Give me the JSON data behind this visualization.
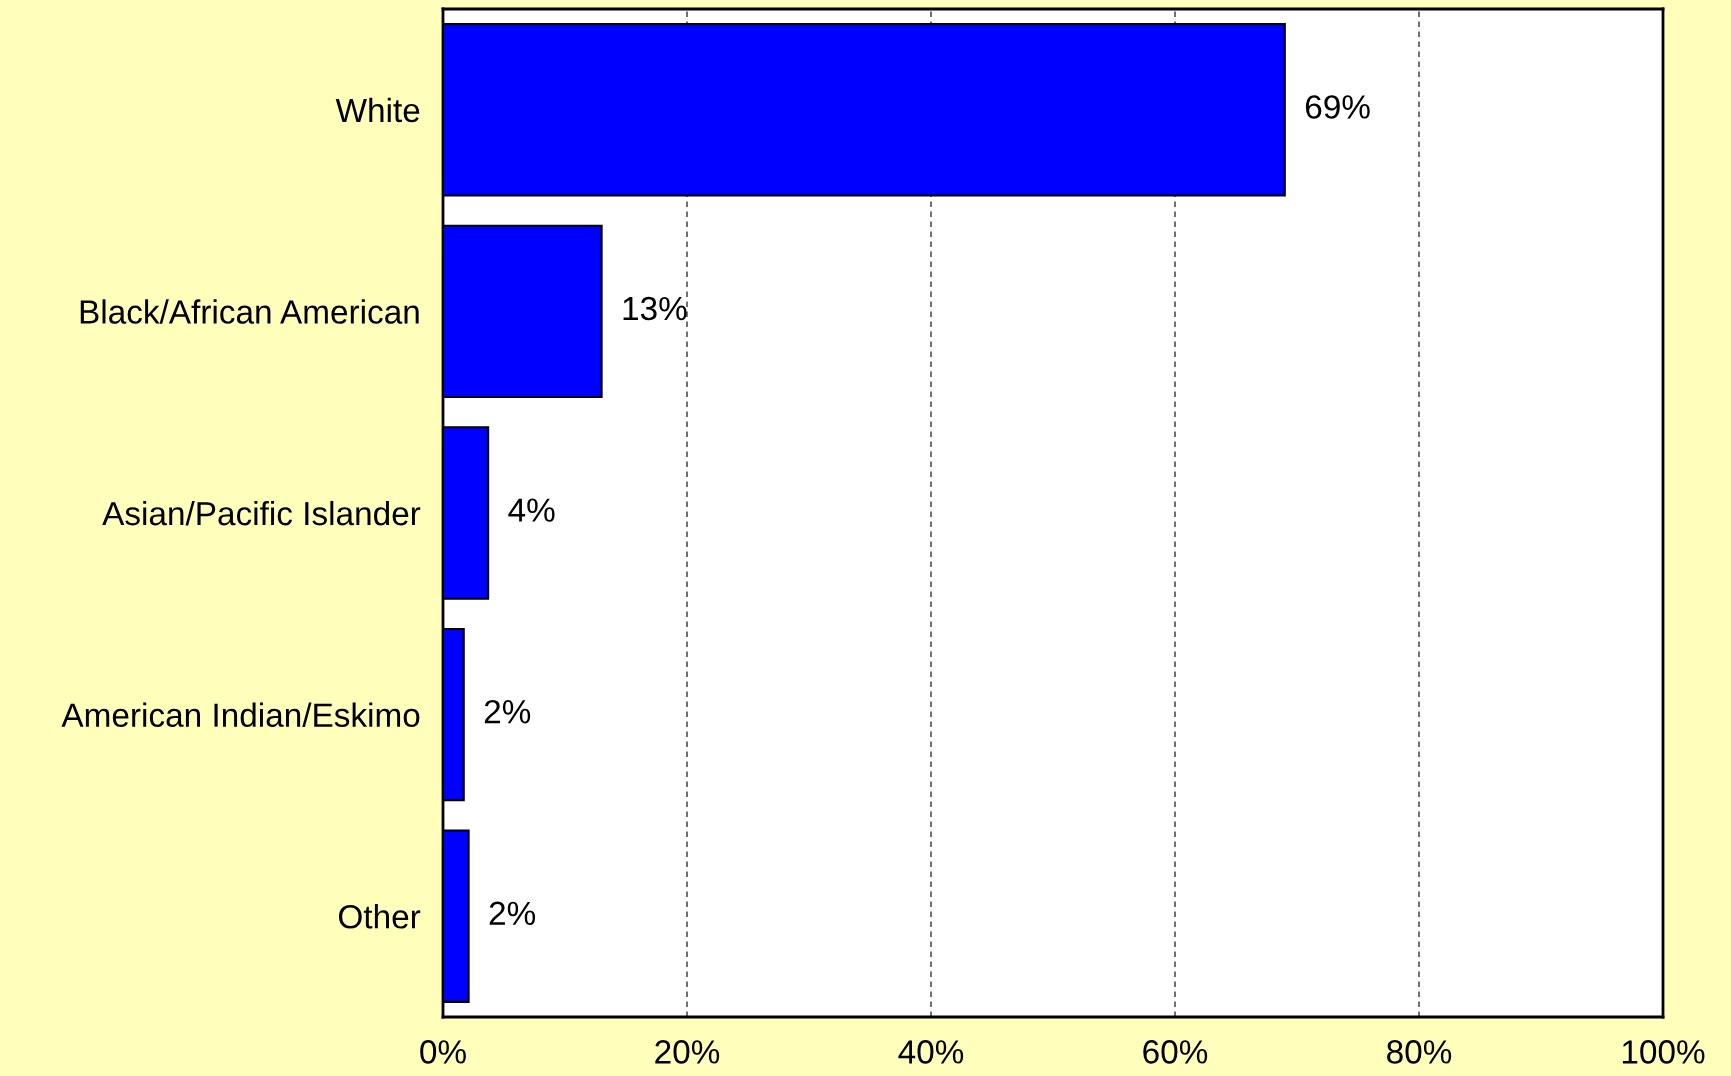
{
  "chart_data": {
    "type": "bar",
    "orientation": "horizontal",
    "categories": [
      "White",
      "Black/African American",
      "Asian/Pacific Islander",
      "American Indian/Eskimo",
      "Other"
    ],
    "values": [
      69,
      13,
      3.7,
      1.7,
      2.1
    ],
    "value_labels": [
      "69%",
      "13%",
      "4%",
      "2%",
      "2%"
    ],
    "color": "#0000ff",
    "xlim": [
      0,
      100
    ],
    "xticks": [
      {
        "value": 0,
        "label": "0%"
      },
      {
        "value": 20,
        "label": "20%"
      },
      {
        "value": 40,
        "label": "40%"
      },
      {
        "value": 60,
        "label": "60%"
      },
      {
        "value": 80,
        "label": "80%"
      },
      {
        "value": 100,
        "label": "100%"
      }
    ],
    "grid": "x",
    "legend": false
  }
}
